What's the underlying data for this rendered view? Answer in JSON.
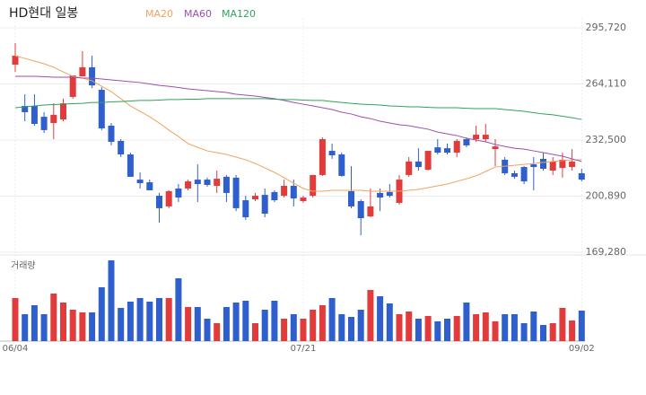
{
  "chart_data": {
    "type": "candlestick",
    "title": "HD현대 일봉",
    "categories": [
      "06/04",
      null,
      null,
      null,
      null,
      null,
      null,
      null,
      null,
      null,
      null,
      null,
      null,
      null,
      null,
      null,
      null,
      null,
      null,
      null,
      null,
      null,
      null,
      null,
      null,
      null,
      null,
      null,
      null,
      null,
      "07/21",
      null,
      null,
      null,
      null,
      null,
      null,
      null,
      null,
      null,
      null,
      null,
      null,
      null,
      null,
      null,
      null,
      null,
      null,
      null,
      null,
      null,
      null,
      null,
      null,
      null,
      null,
      null,
      null,
      "09/02"
    ],
    "open": [
      275000,
      251700,
      251700,
      245600,
      242100,
      244100,
      256800,
      268400,
      273500,
      260800,
      240600,
      232000,
      224400,
      210200,
      208700,
      201100,
      195100,
      205200,
      205200,
      210200,
      210200,
      206700,
      211800,
      211300,
      198600,
      199100,
      201600,
      203200,
      201100,
      206700,
      198100,
      201100,
      212800,
      226400,
      224400,
      203700,
      198100,
      189500,
      202700,
      203200,
      197100,
      212800,
      220400,
      215800,
      228400,
      227900,
      225400,
      233000,
      233000,
      233000,
      227400,
      221400,
      213800,
      217300,
      218800,
      221900,
      215300,
      216800,
      217300,
      213800
    ],
    "high": [
      287100,
      258300,
      258300,
      248200,
      253200,
      255800,
      268900,
      282600,
      280000,
      262300,
      242100,
      233000,
      225400,
      214300,
      210200,
      202700,
      204200,
      207700,
      210200,
      218800,
      211300,
      215300,
      212800,
      212800,
      201100,
      202700,
      205200,
      204200,
      210200,
      210200,
      201100,
      212800,
      234000,
      230500,
      225400,
      217800,
      199100,
      205200,
      205200,
      207700,
      212800,
      222900,
      227900,
      226400,
      233000,
      230500,
      233000,
      234000,
      240600,
      241600,
      233000,
      222900,
      215300,
      217800,
      222900,
      225400,
      222900,
      225400,
      227400,
      216300
    ],
    "low": [
      270900,
      243100,
      240600,
      236500,
      233000,
      243100,
      255800,
      268400,
      261800,
      238100,
      229500,
      222900,
      211800,
      205200,
      204200,
      186000,
      194100,
      197600,
      204200,
      197600,
      206200,
      202700,
      197600,
      192500,
      187500,
      198100,
      189000,
      197600,
      200100,
      195100,
      197100,
      200100,
      212300,
      221900,
      211800,
      194100,
      178900,
      189000,
      192500,
      200100,
      196100,
      211800,
      215300,
      215300,
      224400,
      224400,
      222900,
      228400,
      231500,
      231500,
      217800,
      212800,
      210700,
      207700,
      204200,
      215300,
      212800,
      211300,
      215300,
      209200
    ],
    "close": [
      280000,
      248200,
      241600,
      238100,
      246700,
      253200,
      268900,
      273500,
      263300,
      239100,
      231500,
      224400,
      211800,
      208200,
      204200,
      194100,
      203700,
      200100,
      209200,
      207700,
      207200,
      210700,
      202700,
      194100,
      189000,
      201100,
      191000,
      198600,
      206700,
      199600,
      200100,
      212800,
      233000,
      223900,
      212300,
      195100,
      188500,
      195100,
      200100,
      201100,
      210200,
      220400,
      217300,
      226400,
      225400,
      225400,
      232000,
      229500,
      235500,
      235500,
      228900,
      213800,
      211800,
      209200,
      217300,
      216300,
      220400,
      221400,
      220400,
      210200
    ],
    "up_color": "#e23b3b",
    "down_color": "#2f5fcc",
    "series": [
      {
        "name": "MA20",
        "color": "#f0a35e",
        "values": [
          280000,
          278500,
          277000,
          275500,
          273500,
          270900,
          268400,
          267400,
          265900,
          262800,
          259800,
          255800,
          251700,
          248700,
          245600,
          242100,
          238100,
          234500,
          230500,
          228400,
          226400,
          225400,
          224400,
          222900,
          221400,
          219300,
          216800,
          214300,
          211300,
          208200,
          205200,
          203700,
          203700,
          204200,
          204200,
          204200,
          204200,
          203700,
          203700,
          203700,
          203700,
          204200,
          204700,
          205700,
          206700,
          207700,
          209200,
          210700,
          212300,
          214800,
          217300,
          217800,
          218300,
          218800,
          219300,
          219900,
          220400,
          220900,
          221400,
          221400
        ]
      },
      {
        "name": "MA60",
        "color": "#9b4fb0",
        "values": [
          268400,
          268400,
          268400,
          268200,
          267900,
          267900,
          267900,
          267400,
          267400,
          266900,
          266400,
          265900,
          265400,
          264900,
          264100,
          263300,
          262800,
          262100,
          261300,
          260800,
          260300,
          259800,
          259300,
          258300,
          257800,
          257300,
          256500,
          255800,
          254800,
          253700,
          252700,
          251700,
          250700,
          249700,
          248200,
          247200,
          245600,
          244600,
          243100,
          242100,
          241100,
          240600,
          239600,
          238600,
          237000,
          236000,
          235000,
          233500,
          232500,
          231500,
          230000,
          228900,
          227900,
          227400,
          226400,
          225400,
          224400,
          223400,
          221900,
          220400
        ]
      },
      {
        "name": "MA120",
        "color": "#2fa35a",
        "values": [
          250700,
          251200,
          251700,
          252200,
          252500,
          252700,
          253000,
          253200,
          253700,
          253700,
          254000,
          254200,
          254500,
          254800,
          254800,
          255000,
          255300,
          255300,
          255500,
          255500,
          255800,
          255800,
          255800,
          255800,
          255800,
          255800,
          255800,
          255500,
          255300,
          255300,
          255000,
          254800,
          254800,
          254200,
          253700,
          253200,
          252700,
          252500,
          252200,
          251700,
          251500,
          251200,
          251200,
          250900,
          250700,
          250700,
          250700,
          250400,
          250200,
          250200,
          250200,
          249700,
          249200,
          248700,
          247900,
          247200,
          246700,
          245900,
          245100,
          244100
        ]
      }
    ],
    "ylim": [
      169280,
      295720
    ],
    "yticks": [
      {
        "value": 295720,
        "label": "295,720"
      },
      {
        "value": 264110,
        "label": "264,110"
      },
      {
        "value": 232500,
        "label": "232,500"
      },
      {
        "value": 200890,
        "label": "200,890"
      },
      {
        "value": 169280,
        "label": "169,280"
      }
    ],
    "grid": true,
    "volume": {
      "label": "거래량",
      "values": [
        48,
        30,
        40,
        30,
        53,
        43,
        35,
        32,
        32,
        60,
        90,
        37,
        44,
        48,
        44,
        48,
        48,
        70,
        38,
        38,
        25,
        20,
        38,
        43,
        45,
        20,
        35,
        45,
        25,
        30,
        25,
        35,
        40,
        48,
        30,
        27,
        35,
        57,
        50,
        42,
        30,
        33,
        25,
        28,
        22,
        25,
        28,
        43,
        30,
        32,
        22,
        30,
        30,
        20,
        33,
        18,
        20,
        37,
        23,
        34
      ]
    }
  }
}
